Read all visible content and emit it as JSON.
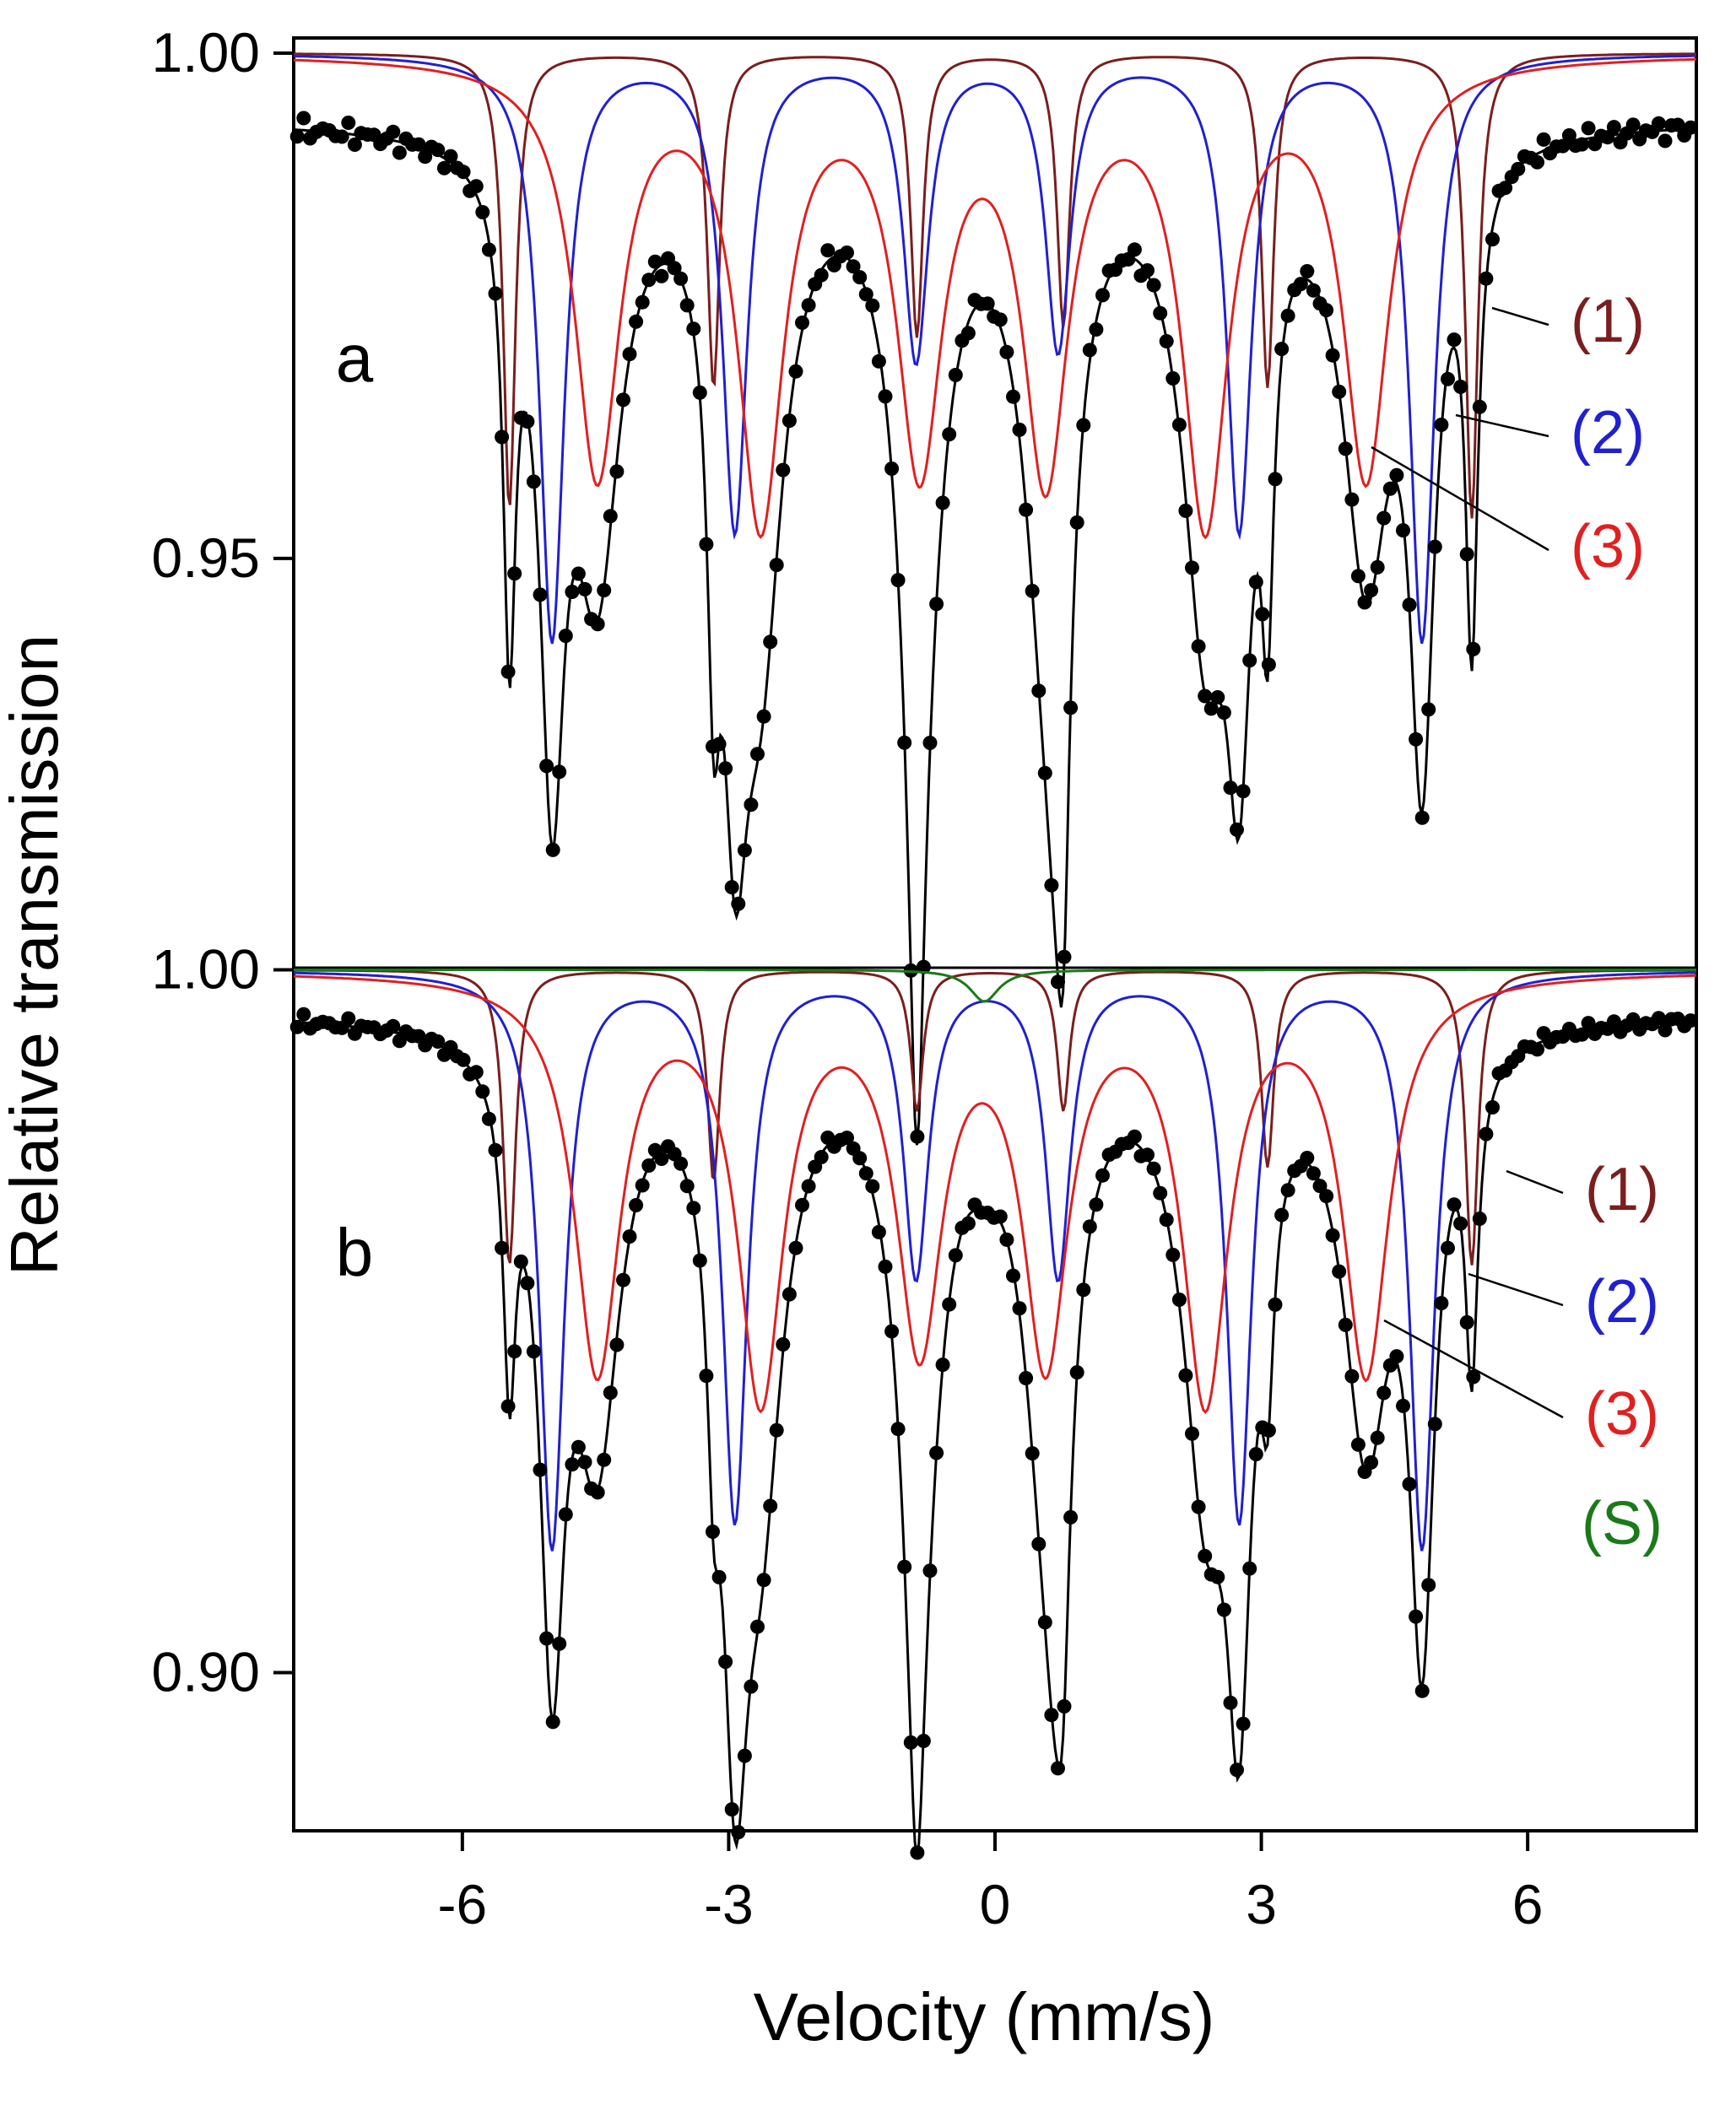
{
  "chart_data": {
    "type": "scatter",
    "title": "",
    "xlabel": "Velocity  (mm/s)",
    "ylabel": "Relative transmission",
    "xlim": [
      -7.9,
      7.9
    ],
    "x_ticks": [
      "-6",
      "-3",
      "0",
      "3",
      "6"
    ],
    "x_tick_values": [
      -6,
      -3,
      0,
      3,
      6
    ],
    "panels": [
      {
        "label": "a",
        "ylim": [
          0.9095,
          1.0015
        ],
        "y_ticks": [
          "1.00",
          "0.95"
        ],
        "y_tick_values": [
          1.0,
          0.95
        ],
        "baseline": 1.0,
        "components": [
          {
            "label": "(1)",
            "color": "#7a1e1e",
            "width": 0.085,
            "lines": [
              {
                "center": -5.47,
                "depth": 0.045
              },
              {
                "center": -3.17,
                "depth": 0.033
              },
              {
                "center": -0.88,
                "depth": 0.028
              },
              {
                "center": 0.77,
                "depth": 0.027
              },
              {
                "center": 3.07,
                "depth": 0.033
              },
              {
                "center": 5.37,
                "depth": 0.046
              }
            ]
          },
          {
            "label": "(2)",
            "color": "#2020d0",
            "width": 0.17,
            "lines": [
              {
                "center": -4.99,
                "depth": 0.058
              },
              {
                "center": -2.93,
                "depth": 0.047
              },
              {
                "center": -0.89,
                "depth": 0.03
              },
              {
                "center": 0.71,
                "depth": 0.029
              },
              {
                "center": 2.75,
                "depth": 0.047
              },
              {
                "center": 4.81,
                "depth": 0.058
              }
            ]
          },
          {
            "label": "(3)",
            "color": "#e02020",
            "width": 0.31,
            "lines": [
              {
                "center": -4.48,
                "depth": 0.041
              },
              {
                "center": -2.64,
                "depth": 0.045
              },
              {
                "center": -0.85,
                "depth": 0.039
              },
              {
                "center": 0.57,
                "depth": 0.04
              },
              {
                "center": 2.37,
                "depth": 0.045
              },
              {
                "center": 4.18,
                "depth": 0.041
              }
            ]
          }
        ],
        "fit_offset": 0.0065,
        "fit_color": "#000000",
        "points_step": 0.072
      },
      {
        "label": "b",
        "ylim": [
          0.8775,
          1.0003
        ],
        "y_ticks": [
          "1.00",
          "0.90"
        ],
        "y_tick_values": [
          1.0,
          0.9
        ],
        "baseline": 1.0,
        "components": [
          {
            "label": "(1)",
            "color": "#7a1e1e",
            "width": 0.085,
            "lines": [
              {
                "center": -5.47,
                "depth": 0.042
              },
              {
                "center": -3.17,
                "depth": 0.03
              },
              {
                "center": -0.88,
                "depth": 0.02
              },
              {
                "center": 0.77,
                "depth": 0.02
              },
              {
                "center": 3.07,
                "depth": 0.028
              },
              {
                "center": 5.37,
                "depth": 0.042
              }
            ]
          },
          {
            "label": "(2)",
            "color": "#2020d0",
            "width": 0.17,
            "lines": [
              {
                "center": -4.99,
                "depth": 0.082
              },
              {
                "center": -2.93,
                "depth": 0.078
              },
              {
                "center": -0.89,
                "depth": 0.043
              },
              {
                "center": 0.71,
                "depth": 0.043
              },
              {
                "center": 2.75,
                "depth": 0.078
              },
              {
                "center": 4.81,
                "depth": 0.082
              }
            ]
          },
          {
            "label": "(3)",
            "color": "#e02020",
            "width": 0.31,
            "lines": [
              {
                "center": -4.48,
                "depth": 0.056
              },
              {
                "center": -2.64,
                "depth": 0.059
              },
              {
                "center": -0.85,
                "depth": 0.051
              },
              {
                "center": 0.57,
                "depth": 0.053
              },
              {
                "center": 2.37,
                "depth": 0.059
              },
              {
                "center": 4.18,
                "depth": 0.056
              }
            ]
          },
          {
            "label": "(S)",
            "color": "#1a7a1a",
            "width": 0.2,
            "lines": [
              {
                "center": -0.12,
                "depth": 0.0045
              }
            ]
          }
        ],
        "fit_offset": 0.006,
        "fit_color": "#000000",
        "points_step": 0.072
      }
    ],
    "grid": false,
    "legend_placement": "right"
  }
}
